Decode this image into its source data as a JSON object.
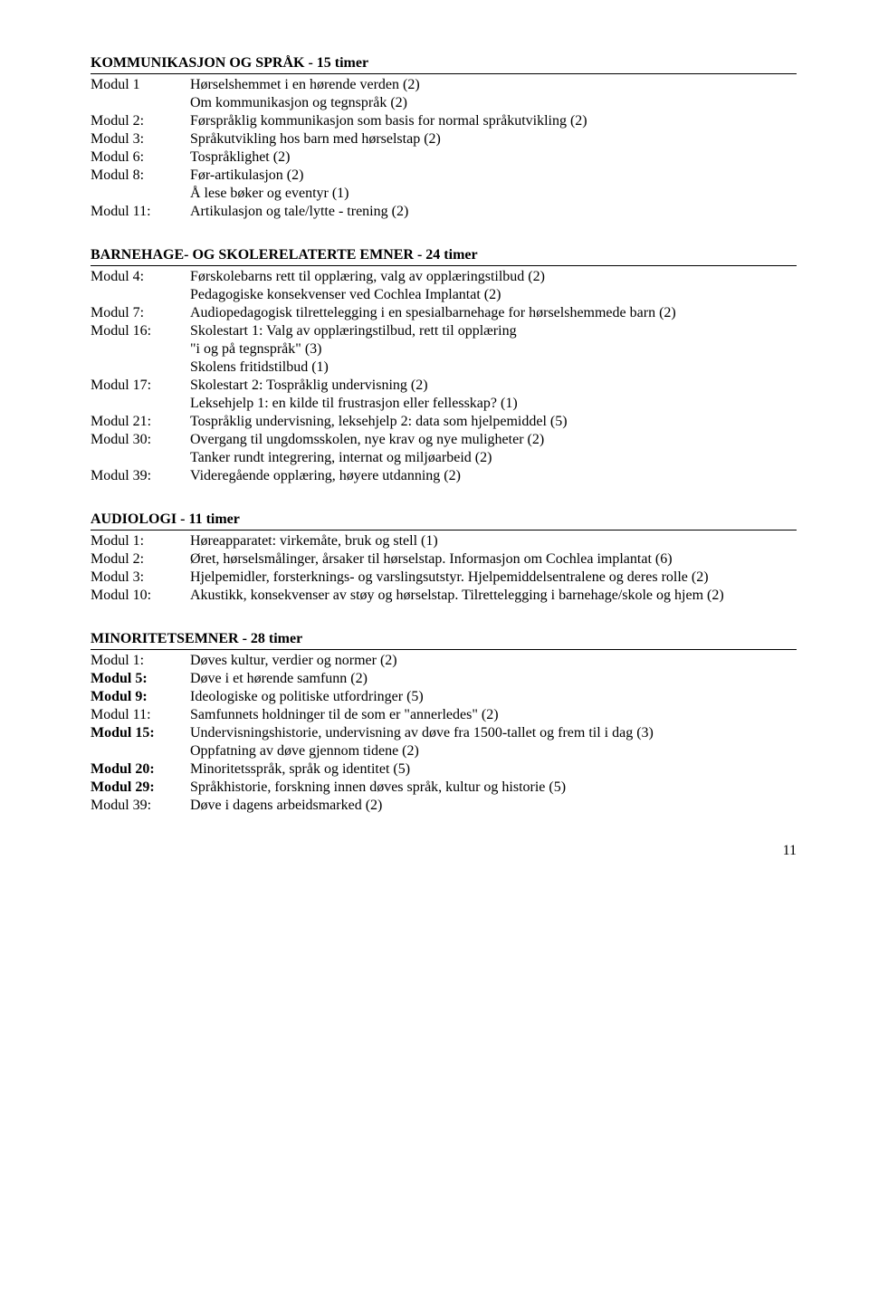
{
  "sections": [
    {
      "title": "KOMMUNIKASJON OG SPRÅK - 15 timer",
      "rows": [
        {
          "label": "Modul 1",
          "lines": [
            "Hørselshemmet i en hørende verden (2)",
            "Om kommunikasjon og tegnspråk (2)"
          ]
        },
        {
          "label": "Modul 2:",
          "lines": [
            "Førspråklig kommunikasjon som basis for normal språkutvikling (2)"
          ]
        },
        {
          "label": "Modul 3:",
          "lines": [
            "Språkutvikling hos barn med hørselstap (2)"
          ]
        },
        {
          "label": "Modul 6:",
          "lines": [
            "Tospråklighet (2)"
          ]
        },
        {
          "label": "Modul 8:",
          "lines": [
            "Før-artikulasjon (2)",
            "Å lese bøker og eventyr (1)"
          ]
        },
        {
          "label": "Modul 11:",
          "lines": [
            "Artikulasjon og tale/lytte - trening (2)"
          ]
        }
      ]
    },
    {
      "title": "BARNEHAGE- OG SKOLERELATERTE EMNER - 24 timer",
      "rows": [
        {
          "label": "Modul 4:",
          "lines": [
            "Førskolebarns rett til opplæring, valg av opplæringstilbud (2)",
            "Pedagogiske konsekvenser ved Cochlea Implantat (2)"
          ]
        },
        {
          "label": "Modul 7:",
          "lines": [
            "Audiopedagogisk tilrettelegging i en spesialbarnehage for hørselshemmede barn (2)"
          ]
        },
        {
          "label": "Modul 16:",
          "lines": [
            "Skolestart 1: Valg av opplæringstilbud, rett til opplæring",
            "\"i og på tegnspråk\" (3)",
            "Skolens fritidstilbud (1)"
          ]
        },
        {
          "label": "Modul 17:",
          "lines": [
            "Skolestart 2: Tospråklig undervisning (2)",
            "Leksehjelp 1: en kilde til frustrasjon eller fellesskap? (1)"
          ]
        },
        {
          "label": "Modul 21:",
          "lines": [
            "Tospråklig undervisning, leksehjelp 2: data som hjelpemiddel (5)"
          ]
        },
        {
          "label": "Modul 30:",
          "lines": [
            "Overgang til ungdomsskolen, nye krav og nye muligheter (2)",
            "Tanker rundt integrering, internat og miljøarbeid (2)"
          ]
        },
        {
          "label": "Modul 39:",
          "lines": [
            "Videregående opplæring, høyere utdanning (2)"
          ]
        }
      ]
    },
    {
      "title": "AUDIOLOGI - 11 timer",
      "rows": [
        {
          "label": "Modul 1:",
          "lines": [
            "Høreapparatet: virkemåte, bruk og stell (1)"
          ]
        },
        {
          "label": "Modul 2:",
          "lines": [
            "Øret, hørselsmålinger, årsaker til hørselstap. Informasjon om Cochlea implantat (6)"
          ]
        },
        {
          "label": "Modul 3:",
          "lines": [
            "Hjelpemidler, forsterknings- og varslingsutstyr. Hjelpemiddelsentralene og deres rolle (2)"
          ]
        },
        {
          "label": "Modul 10:",
          "lines": [
            "Akustikk, konsekvenser av støy og hørselstap.  Tilrettelegging i barnehage/skole og hjem (2)"
          ]
        }
      ]
    },
    {
      "title": "MINORITETSEMNER - 28 timer",
      "rows": [
        {
          "label": "Modul 1:",
          "lines": [
            "Døves kultur, verdier og normer (2)"
          ]
        },
        {
          "label": "Modul 5:",
          "labelBold": true,
          "lines": [
            "Døve i et hørende samfunn (2)"
          ]
        },
        {
          "label": "Modul 9:",
          "labelBold": true,
          "lines": [
            "Ideologiske og politiske utfordringer (5)"
          ]
        },
        {
          "label": "Modul 11:",
          "lines": [
            "Samfunnets holdninger til de som er \"annerledes\" (2)"
          ]
        },
        {
          "label": "Modul 15:",
          "labelBold": true,
          "lines": [
            "Undervisningshistorie, undervisning av døve fra 1500-tallet og frem til i dag (3)",
            "Oppfatning av døve gjennom tidene (2)"
          ]
        },
        {
          "label": "Modul 20:",
          "labelBold": true,
          "lines": [
            "Minoritetsspråk, språk og identitet (5)"
          ]
        },
        {
          "label": "Modul 29:",
          "labelBold": true,
          "lines": [
            "Språkhistorie, forskning innen døves språk, kultur og historie (5)"
          ]
        },
        {
          "label": "Modul 39:",
          "lines": [
            "Døve i dagens arbeidsmarked (2)"
          ]
        }
      ]
    }
  ],
  "pageNumber": "11"
}
